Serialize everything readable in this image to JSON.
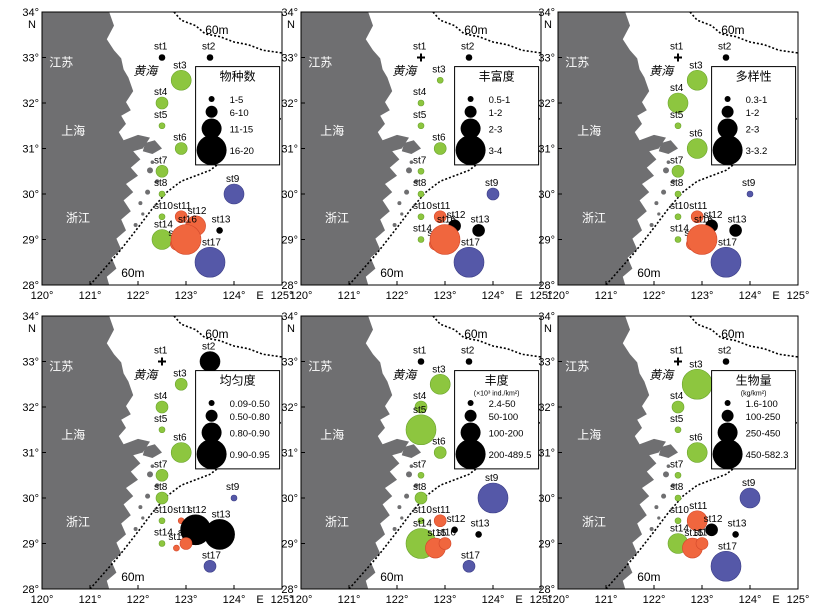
{
  "colors": {
    "land": "#6f6f71",
    "sea": "#ffffff",
    "frame": "#000000",
    "green": "#8dc63f",
    "green_stroke": "#6aa32c",
    "blue": "#5558a8",
    "blue_stroke": "#3a3c86",
    "red": "#f0663e",
    "red_stroke": "#d2472a",
    "black": "#000000"
  },
  "axes": {
    "lon_ticks": [
      "120°",
      "121°",
      "122°",
      "123°",
      "124°",
      "125°"
    ],
    "lat_ticks": [
      "28°",
      "29°",
      "30°",
      "31°",
      "32°",
      "33°",
      "34°"
    ],
    "east_label": "E",
    "north_label": "N",
    "lon_range": [
      120,
      125
    ],
    "lat_range": [
      28,
      34
    ]
  },
  "map_labels": {
    "jiangsu": "江苏",
    "yellow_sea": "黄海",
    "shanghai": "上海",
    "zhejiang": "浙江",
    "isobath_a": "60m",
    "isobath_b": "60m",
    "isobath_c": "60m"
  },
  "stations": [
    {
      "id": "st1",
      "lon": 122.5,
      "lat": 33.0
    },
    {
      "id": "st2",
      "lon": 123.5,
      "lat": 33.0
    },
    {
      "id": "st3",
      "lon": 122.9,
      "lat": 32.5
    },
    {
      "id": "st4",
      "lon": 122.5,
      "lat": 32.0
    },
    {
      "id": "st5",
      "lon": 122.5,
      "lat": 31.5
    },
    {
      "id": "st6",
      "lon": 122.9,
      "lat": 31.0
    },
    {
      "id": "st7",
      "lon": 122.5,
      "lat": 30.5
    },
    {
      "id": "st8",
      "lon": 122.5,
      "lat": 30.0
    },
    {
      "id": "st9",
      "lon": 124.0,
      "lat": 30.0
    },
    {
      "id": "st10",
      "lon": 122.5,
      "lat": 29.5
    },
    {
      "id": "st11",
      "lon": 122.9,
      "lat": 29.5
    },
    {
      "id": "st12",
      "lon": 123.2,
      "lat": 29.3
    },
    {
      "id": "st13",
      "lon": 123.7,
      "lat": 29.2
    },
    {
      "id": "st14",
      "lon": 122.5,
      "lat": 29.0
    },
    {
      "id": "st15",
      "lon": 122.8,
      "lat": 28.9
    },
    {
      "id": "st16",
      "lon": 123.0,
      "lat": 29.0
    },
    {
      "id": "st17",
      "lon": 123.5,
      "lat": 28.5
    }
  ],
  "chart_data": [
    {
      "type": "bubble-map",
      "legend_title": "物种数",
      "legend_title_sub": "",
      "legend": [
        {
          "label": "1-5",
          "size": 1
        },
        {
          "label": "6-10",
          "size": 2
        },
        {
          "label": "11-15",
          "size": 3
        },
        {
          "label": "16-20",
          "size": 4
        }
      ],
      "values": {
        "st1": {
          "size": 1,
          "color": "black"
        },
        "st2": {
          "size": 1,
          "color": "black"
        },
        "st3": {
          "size": 3,
          "color": "green"
        },
        "st4": {
          "size": 2,
          "color": "green"
        },
        "st5": {
          "size": 1,
          "color": "green"
        },
        "st6": {
          "size": 2,
          "color": "green"
        },
        "st7": {
          "size": 2,
          "color": "green"
        },
        "st8": {
          "size": 1,
          "color": "green"
        },
        "st9": {
          "size": 3,
          "color": "blue"
        },
        "st10": {
          "size": 1,
          "color": "green"
        },
        "st11": {
          "size": 2,
          "color": "red"
        },
        "st12": {
          "size": 3,
          "color": "red"
        },
        "st13": {
          "size": 1,
          "color": "black"
        },
        "st14": {
          "size": 3,
          "color": "green"
        },
        "st15": {
          "size": 2,
          "color": "red"
        },
        "st16": {
          "size": 4,
          "color": "red"
        },
        "st17": {
          "size": 4,
          "color": "blue"
        }
      }
    },
    {
      "type": "bubble-map",
      "legend_title": "丰富度",
      "legend_title_sub": "",
      "legend": [
        {
          "label": "0.5-1",
          "size": 1
        },
        {
          "label": "1-2",
          "size": 2
        },
        {
          "label": "2-3",
          "size": 3
        },
        {
          "label": "3-4",
          "size": 4
        }
      ],
      "values": {
        "st1": {
          "size": 0,
          "color": "cross"
        },
        "st2": {
          "size": 1,
          "color": "black"
        },
        "st3": {
          "size": 1,
          "color": "green"
        },
        "st4": {
          "size": 1,
          "color": "green"
        },
        "st5": {
          "size": 1,
          "color": "green"
        },
        "st6": {
          "size": 2,
          "color": "green"
        },
        "st7": {
          "size": 1,
          "color": "green"
        },
        "st8": {
          "size": 1,
          "color": "green"
        },
        "st9": {
          "size": 2,
          "color": "blue"
        },
        "st10": {
          "size": 1,
          "color": "green"
        },
        "st11": {
          "size": 2,
          "color": "red"
        },
        "st12": {
          "size": 2,
          "color": "black"
        },
        "st13": {
          "size": 2,
          "color": "black"
        },
        "st14": {
          "size": 1,
          "color": "green"
        },
        "st15": {
          "size": 2,
          "color": "red"
        },
        "st16": {
          "size": 4,
          "color": "red"
        },
        "st17": {
          "size": 4,
          "color": "blue"
        }
      }
    },
    {
      "type": "bubble-map",
      "legend_title": "多样性",
      "legend_title_sub": "",
      "legend": [
        {
          "label": "0.3-1",
          "size": 1
        },
        {
          "label": "1-2",
          "size": 2
        },
        {
          "label": "2-3",
          "size": 3
        },
        {
          "label": "3-3.2",
          "size": 4
        }
      ],
      "values": {
        "st1": {
          "size": 0,
          "color": "cross"
        },
        "st2": {
          "size": 1,
          "color": "black"
        },
        "st3": {
          "size": 3,
          "color": "green"
        },
        "st4": {
          "size": 3,
          "color": "green"
        },
        "st5": {
          "size": 1,
          "color": "green"
        },
        "st6": {
          "size": 3,
          "color": "green"
        },
        "st7": {
          "size": 2,
          "color": "green"
        },
        "st8": {
          "size": 1,
          "color": "green"
        },
        "st9": {
          "size": 1,
          "color": "blue"
        },
        "st10": {
          "size": 1,
          "color": "green"
        },
        "st11": {
          "size": 2,
          "color": "red"
        },
        "st12": {
          "size": 2,
          "color": "black"
        },
        "st13": {
          "size": 2,
          "color": "black"
        },
        "st14": {
          "size": 1,
          "color": "green"
        },
        "st15": {
          "size": 2,
          "color": "red"
        },
        "st16": {
          "size": 4,
          "color": "red"
        },
        "st17": {
          "size": 4,
          "color": "blue"
        }
      }
    },
    {
      "type": "bubble-map",
      "legend_title": "均匀度",
      "legend_title_sub": "",
      "legend": [
        {
          "label": "0.09-0.50",
          "size": 1
        },
        {
          "label": "0.50-0.80",
          "size": 2
        },
        {
          "label": "0.80-0.90",
          "size": 3
        },
        {
          "label": "0.90-0.95",
          "size": 4
        }
      ],
      "values": {
        "st1": {
          "size": 0,
          "color": "cross"
        },
        "st2": {
          "size": 3,
          "color": "black"
        },
        "st3": {
          "size": 2,
          "color": "green"
        },
        "st4": {
          "size": 2,
          "color": "green"
        },
        "st5": {
          "size": 1,
          "color": "green"
        },
        "st6": {
          "size": 3,
          "color": "green"
        },
        "st7": {
          "size": 2,
          "color": "green"
        },
        "st8": {
          "size": 2,
          "color": "green"
        },
        "st9": {
          "size": 1,
          "color": "blue"
        },
        "st10": {
          "size": 1,
          "color": "green"
        },
        "st11": {
          "size": 1,
          "color": "red"
        },
        "st12": {
          "size": 4,
          "color": "black"
        },
        "st13": {
          "size": 4,
          "color": "black"
        },
        "st14": {
          "size": 1,
          "color": "green"
        },
        "st15": {
          "size": 1,
          "color": "red"
        },
        "st16": {
          "size": 2,
          "color": "red"
        },
        "st17": {
          "size": 2,
          "color": "blue"
        }
      }
    },
    {
      "type": "bubble-map",
      "legend_title": "丰度",
      "legend_title_sub": "(×10³ ind./km²)",
      "legend": [
        {
          "label": "2.4-50",
          "size": 1
        },
        {
          "label": "50-100",
          "size": 2
        },
        {
          "label": "100-200",
          "size": 3
        },
        {
          "label": "200-489.5",
          "size": 4
        }
      ],
      "values": {
        "st1": {
          "size": 1,
          "color": "black"
        },
        "st2": {
          "size": 1,
          "color": "black"
        },
        "st3": {
          "size": 3,
          "color": "green"
        },
        "st4": {
          "size": 2,
          "color": "green"
        },
        "st5": {
          "size": 4,
          "color": "green"
        },
        "st6": {
          "size": 2,
          "color": "green"
        },
        "st7": {
          "size": 1,
          "color": "green"
        },
        "st8": {
          "size": 2,
          "color": "green"
        },
        "st9": {
          "size": 4,
          "color": "blue"
        },
        "st10": {
          "size": 1,
          "color": "green"
        },
        "st11": {
          "size": 2,
          "color": "red"
        },
        "st12": {
          "size": 1,
          "color": "black"
        },
        "st13": {
          "size": 1,
          "color": "black"
        },
        "st14": {
          "size": 4,
          "color": "green"
        },
        "st15": {
          "size": 3,
          "color": "red"
        },
        "st16": {
          "size": 2,
          "color": "red"
        },
        "st17": {
          "size": 2,
          "color": "blue"
        }
      }
    },
    {
      "type": "bubble-map",
      "legend_title": "生物量",
      "legend_title_sub": "(kg/km²)",
      "legend": [
        {
          "label": "1.6-100",
          "size": 1
        },
        {
          "label": "100-250",
          "size": 2
        },
        {
          "label": "250-450",
          "size": 3
        },
        {
          "label": "450-582.3",
          "size": 4
        }
      ],
      "values": {
        "st1": {
          "size": 0,
          "color": "cross"
        },
        "st2": {
          "size": 1,
          "color": "black"
        },
        "st3": {
          "size": 4,
          "color": "green"
        },
        "st4": {
          "size": 2,
          "color": "green"
        },
        "st5": {
          "size": 1,
          "color": "green"
        },
        "st6": {
          "size": 3,
          "color": "green"
        },
        "st7": {
          "size": 1,
          "color": "green"
        },
        "st8": {
          "size": 1,
          "color": "green"
        },
        "st9": {
          "size": 3,
          "color": "blue"
        },
        "st10": {
          "size": 1,
          "color": "green"
        },
        "st11": {
          "size": 3,
          "color": "red"
        },
        "st12": {
          "size": 2,
          "color": "black"
        },
        "st13": {
          "size": 1,
          "color": "black"
        },
        "st14": {
          "size": 3,
          "color": "green"
        },
        "st15": {
          "size": 3,
          "color": "red"
        },
        "st16": {
          "size": 2,
          "color": "red"
        },
        "st17": {
          "size": 4,
          "color": "blue"
        }
      }
    }
  ]
}
